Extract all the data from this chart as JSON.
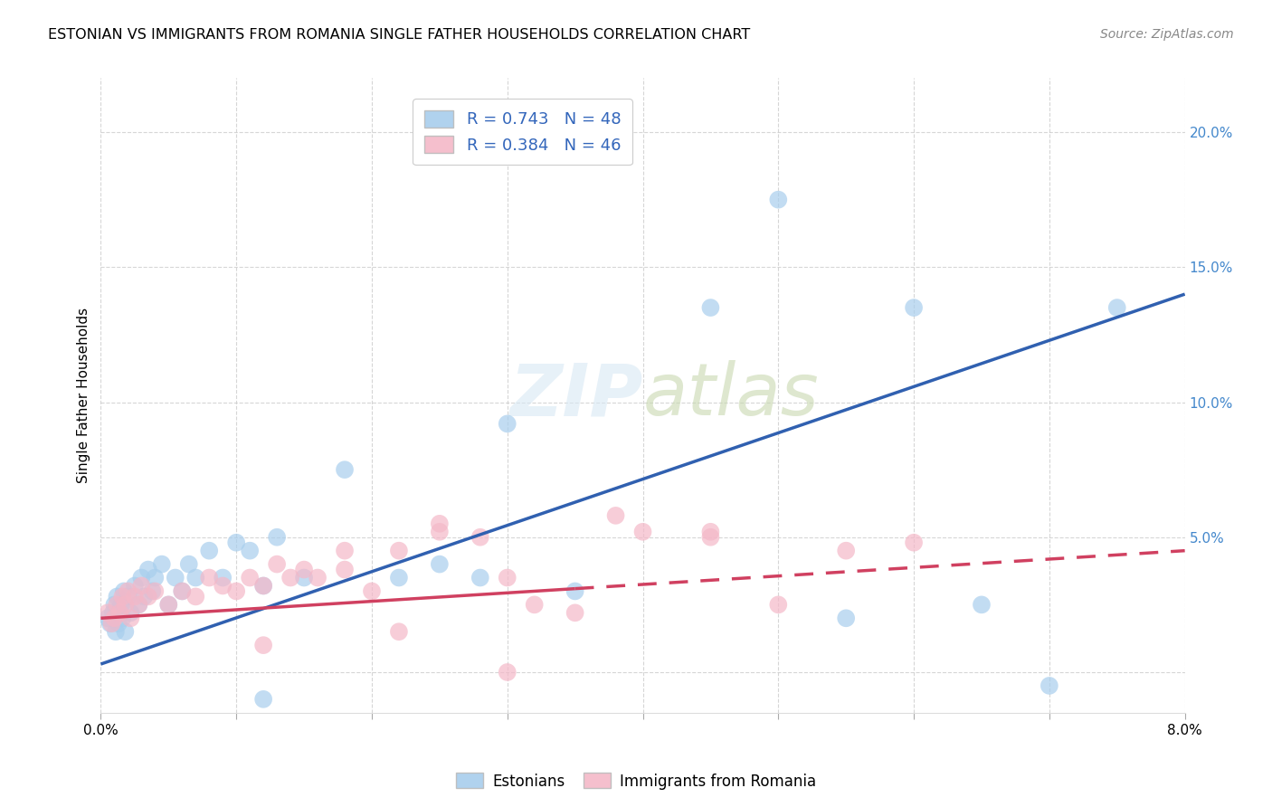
{
  "title": "ESTONIAN VS IMMIGRANTS FROM ROMANIA SINGLE FATHER HOUSEHOLDS CORRELATION CHART",
  "source": "Source: ZipAtlas.com",
  "ylabel": "Single Father Households",
  "xlim": [
    0.0,
    8.0
  ],
  "ylim": [
    -1.5,
    22.0
  ],
  "yticks": [
    0.0,
    5.0,
    10.0,
    15.0,
    20.0
  ],
  "ytick_labels": [
    "",
    "5.0%",
    "10.0%",
    "15.0%",
    "20.0%"
  ],
  "xticks": [
    0.0,
    1.0,
    2.0,
    3.0,
    4.0,
    5.0,
    6.0,
    7.0,
    8.0
  ],
  "blue_color": "#A8CEED",
  "pink_color": "#F4B8C8",
  "blue_line_color": "#3060B0",
  "pink_line_color": "#D04060",
  "blue_line_x0": 0.0,
  "blue_line_y0": 0.3,
  "blue_line_x1": 8.0,
  "blue_line_y1": 14.0,
  "pink_line_x0": 0.0,
  "pink_line_y0": 2.0,
  "pink_line_x1": 8.0,
  "pink_line_y1": 4.5,
  "pink_line_dash_x0": 3.5,
  "pink_line_dash_x1": 8.0,
  "blue_scatter_x": [
    0.05,
    0.07,
    0.09,
    0.1,
    0.11,
    0.12,
    0.13,
    0.14,
    0.15,
    0.16,
    0.17,
    0.18,
    0.2,
    0.22,
    0.25,
    0.28,
    0.3,
    0.32,
    0.35,
    0.38,
    0.4,
    0.45,
    0.5,
    0.55,
    0.6,
    0.65,
    0.7,
    0.8,
    0.9,
    1.0,
    1.1,
    1.2,
    1.3,
    1.5,
    1.8,
    2.2,
    2.5,
    2.8,
    3.0,
    3.5,
    4.5,
    5.0,
    6.0,
    6.5,
    7.0,
    7.5,
    5.5,
    1.2
  ],
  "blue_scatter_y": [
    2.0,
    1.8,
    2.2,
    2.5,
    1.5,
    2.8,
    1.8,
    2.2,
    2.5,
    2.0,
    3.0,
    1.5,
    2.8,
    2.2,
    3.2,
    2.5,
    3.5,
    2.8,
    3.8,
    3.0,
    3.5,
    4.0,
    2.5,
    3.5,
    3.0,
    4.0,
    3.5,
    4.5,
    3.5,
    4.8,
    4.5,
    3.2,
    5.0,
    3.5,
    7.5,
    3.5,
    4.0,
    3.5,
    9.2,
    3.0,
    13.5,
    17.5,
    13.5,
    2.5,
    -0.5,
    13.5,
    2.0,
    -1.0
  ],
  "pink_scatter_x": [
    0.05,
    0.08,
    0.1,
    0.12,
    0.14,
    0.16,
    0.18,
    0.2,
    0.22,
    0.25,
    0.28,
    0.3,
    0.35,
    0.4,
    0.5,
    0.6,
    0.7,
    0.8,
    0.9,
    1.0,
    1.1,
    1.2,
    1.3,
    1.4,
    1.5,
    1.6,
    1.8,
    2.0,
    2.2,
    2.5,
    2.8,
    3.0,
    3.2,
    3.5,
    3.8,
    4.0,
    4.5,
    5.0,
    5.5,
    6.0,
    1.2,
    2.2,
    3.0,
    1.8,
    2.5,
    4.5
  ],
  "pink_scatter_y": [
    2.2,
    1.8,
    2.0,
    2.5,
    2.2,
    2.8,
    2.5,
    3.0,
    2.0,
    2.8,
    2.5,
    3.2,
    2.8,
    3.0,
    2.5,
    3.0,
    2.8,
    3.5,
    3.2,
    3.0,
    3.5,
    3.2,
    4.0,
    3.5,
    3.8,
    3.5,
    3.8,
    3.0,
    4.5,
    5.2,
    5.0,
    3.5,
    2.5,
    2.2,
    5.8,
    5.2,
    5.0,
    2.5,
    4.5,
    4.8,
    1.0,
    1.5,
    0.0,
    4.5,
    5.5,
    5.2
  ]
}
